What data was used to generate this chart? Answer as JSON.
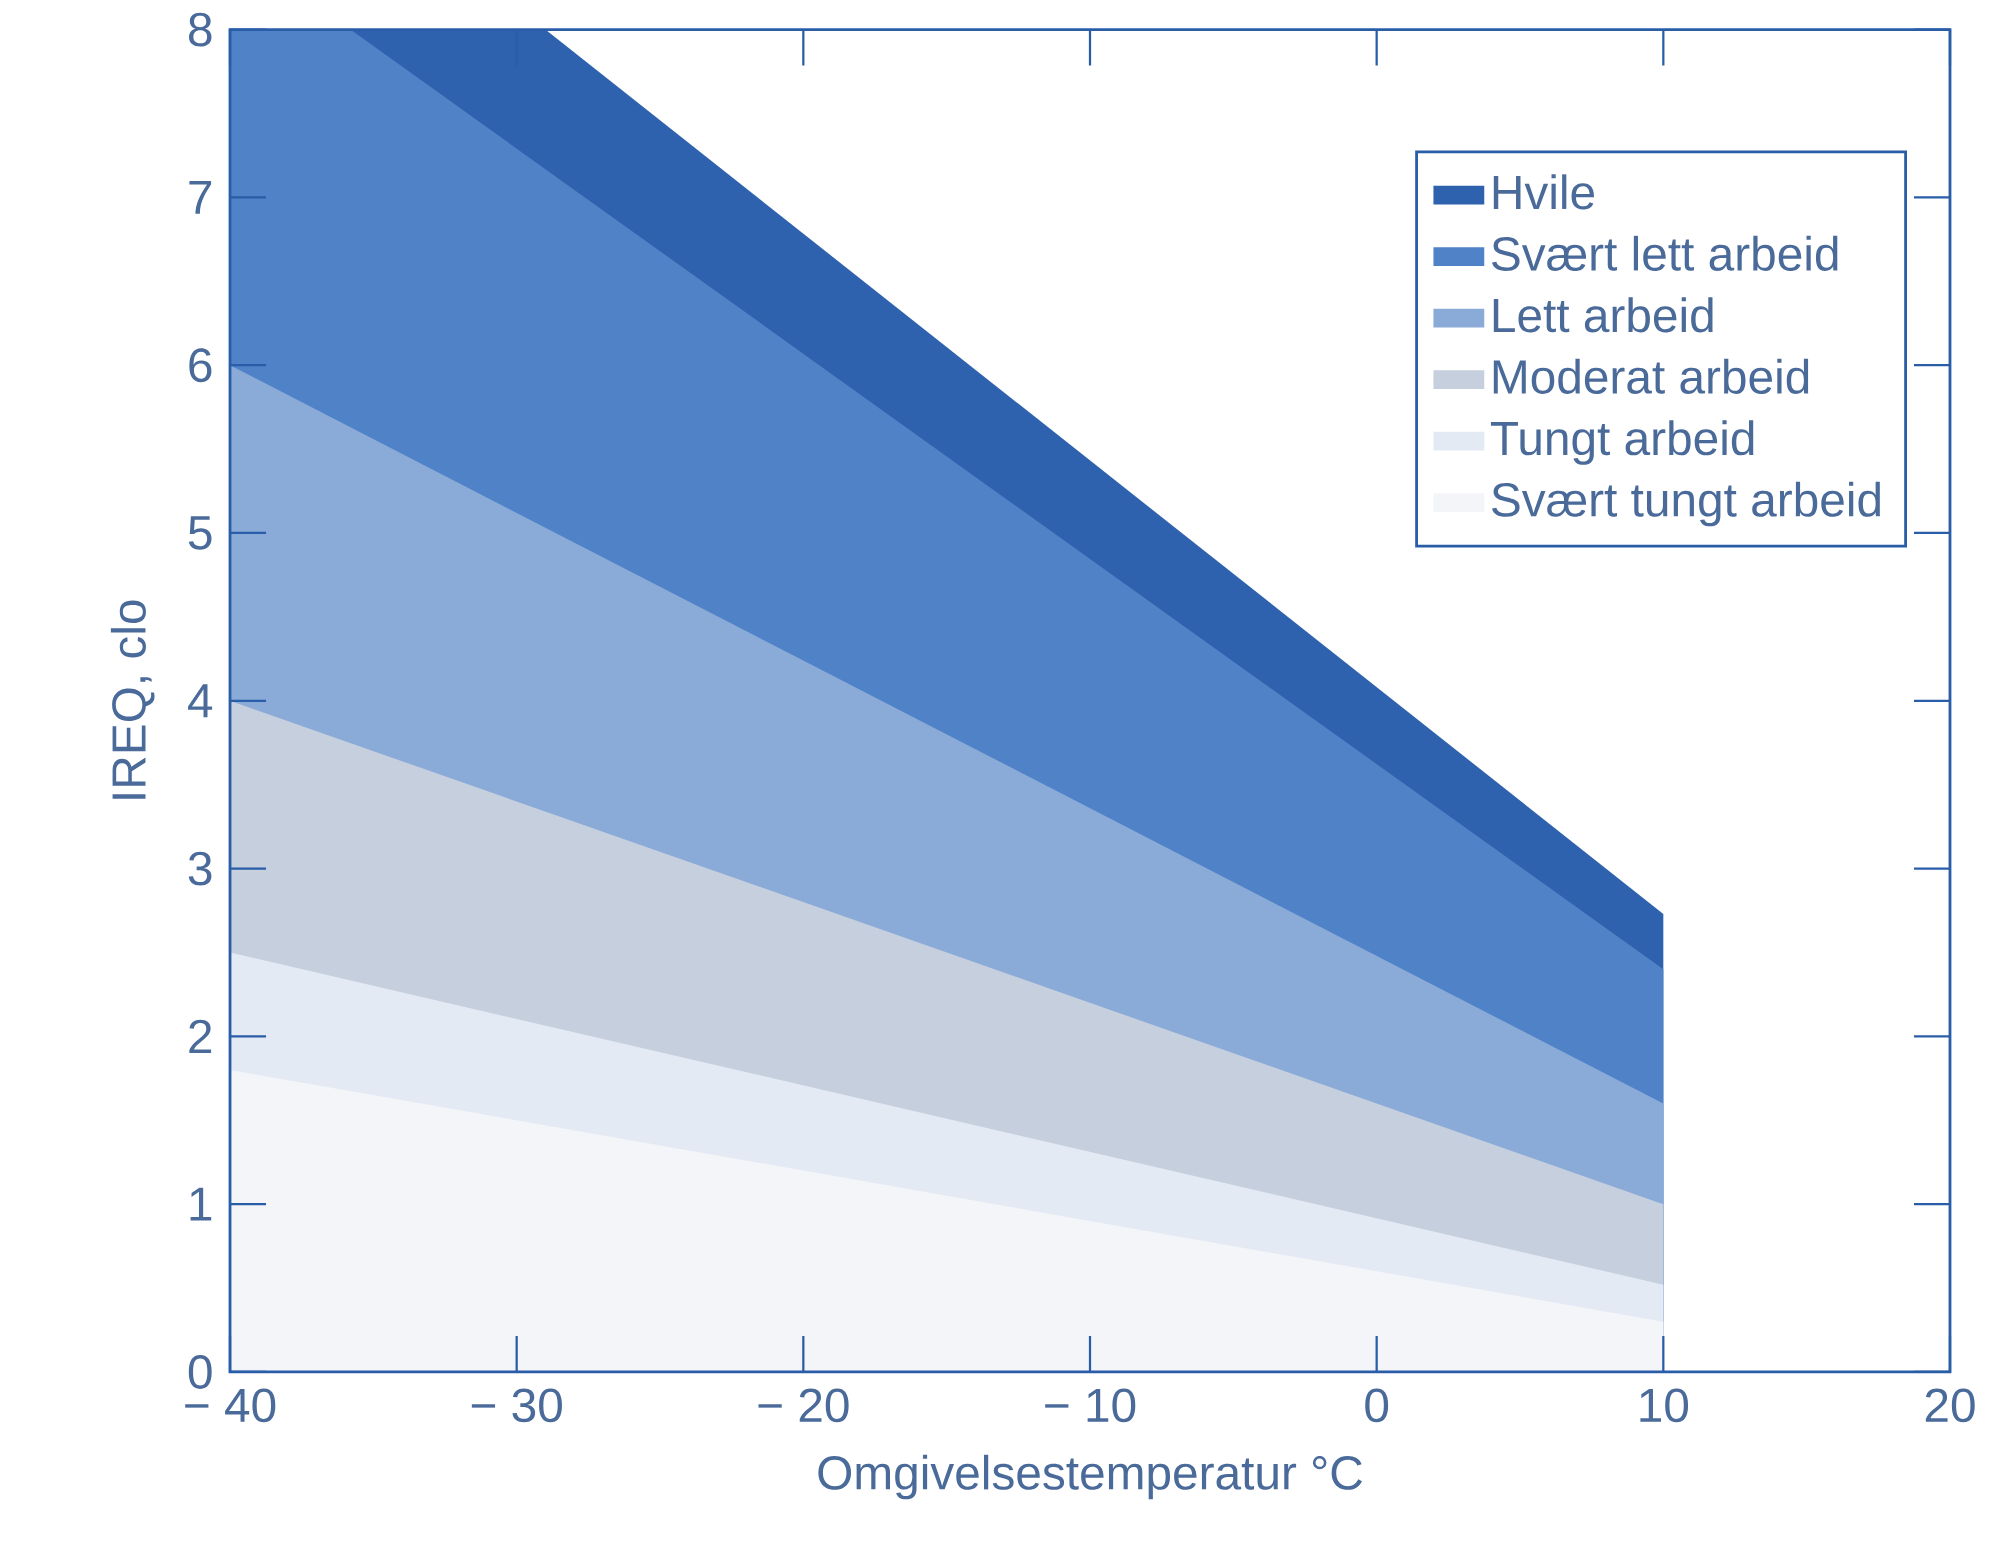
{
  "chart_data": {
    "type": "area",
    "xlabel": "Omgivelsestemperatur °C",
    "ylabel": "IREQ, clo",
    "xlim": [
      -40,
      20
    ],
    "ylim": [
      0,
      8
    ],
    "xticks": [
      {
        "value": -40,
        "label": "− 40"
      },
      {
        "value": -30,
        "label": "− 30"
      },
      {
        "value": -20,
        "label": "− 20"
      },
      {
        "value": -10,
        "label": "− 10"
      },
      0,
      10,
      20
    ],
    "yticks": [
      0,
      1,
      2,
      3,
      4,
      5,
      6,
      7,
      8
    ],
    "legend": "top right",
    "grid": false,
    "series": [
      {
        "name": "Hvile",
        "color": "#2f62ae",
        "x": [
          -35.8,
          -29,
          10
        ],
        "values": [
          8,
          8,
          2.73
        ]
      },
      {
        "name": "Svært lett arbeid",
        "color": "#4f82c6",
        "x": [
          -40,
          -35.8,
          10
        ],
        "values": [
          8,
          8,
          2.4
        ]
      },
      {
        "name": "Lett arbeid",
        "color": "#8aaad8",
        "x": [
          -40,
          10
        ],
        "values": [
          6.0,
          1.6
        ]
      },
      {
        "name": "Moderat arbeid",
        "color": "#c5cfde",
        "x": [
          -40,
          10
        ],
        "values": [
          4.0,
          1.0
        ]
      },
      {
        "name": "Tungt arbeid",
        "color": "#e4eaf3",
        "x": [
          -40,
          10
        ],
        "values": [
          2.5,
          0.52
        ]
      },
      {
        "name": "Svært tungt arbeid",
        "color": "#f3f5f9",
        "x": [
          -40,
          10
        ],
        "values": [
          1.8,
          0.3
        ]
      }
    ]
  }
}
